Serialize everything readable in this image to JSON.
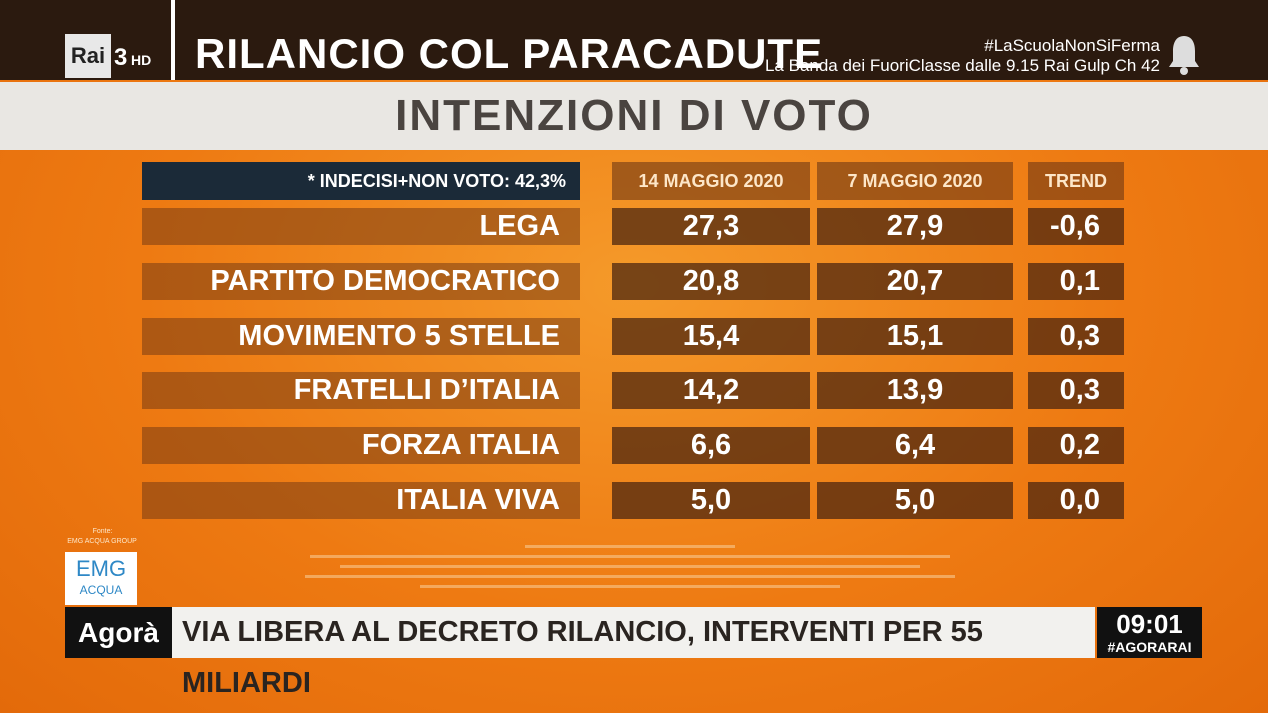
{
  "header": {
    "channel": "Rai",
    "channel_number": "3",
    "channel_suffix": "HD",
    "title": "RILANCIO COL PARACADUTE",
    "hashtag": "#LaScuolaNonSiFerma",
    "promo": "La Banda dei FuoriClasse dalle 9.15 Rai Gulp Ch 42"
  },
  "section_title": "INTENZIONI DI VOTO",
  "table": {
    "note": "* INDECISI+NON VOTO: 42,3%",
    "columns": [
      "14 MAGGIO 2020",
      "7 MAGGIO 2020",
      "TREND"
    ],
    "rows": [
      [
        "LEGA",
        "27,3",
        "27,9",
        "-0,6"
      ],
      [
        "PARTITO DEMOCRATICO",
        "20,8",
        "20,7",
        "0,1"
      ],
      [
        "MOVIMENTO 5 STELLE",
        "15,4",
        "15,1",
        "0,3"
      ],
      [
        "FRATELLI D’ITALIA",
        "14,2",
        "13,9",
        "0,3"
      ],
      [
        "FORZA ITALIA",
        "6,6",
        "6,4",
        "0,2"
      ],
      [
        "ITALIA VIVA",
        "5,0",
        "5,0",
        "0,0"
      ]
    ]
  },
  "source": {
    "label": "Fonte:",
    "name": "EMG ACQUA GROUP",
    "logo_top": "EMG",
    "logo_bottom": "ACQUA"
  },
  "ticker": {
    "show": "Agorà",
    "headline": "VIA LIBERA AL DECRETO RILANCIO, INTERVENTI PER 55 MILIARDI",
    "time": "09:01",
    "hashtag": "#AGORARAI"
  }
}
